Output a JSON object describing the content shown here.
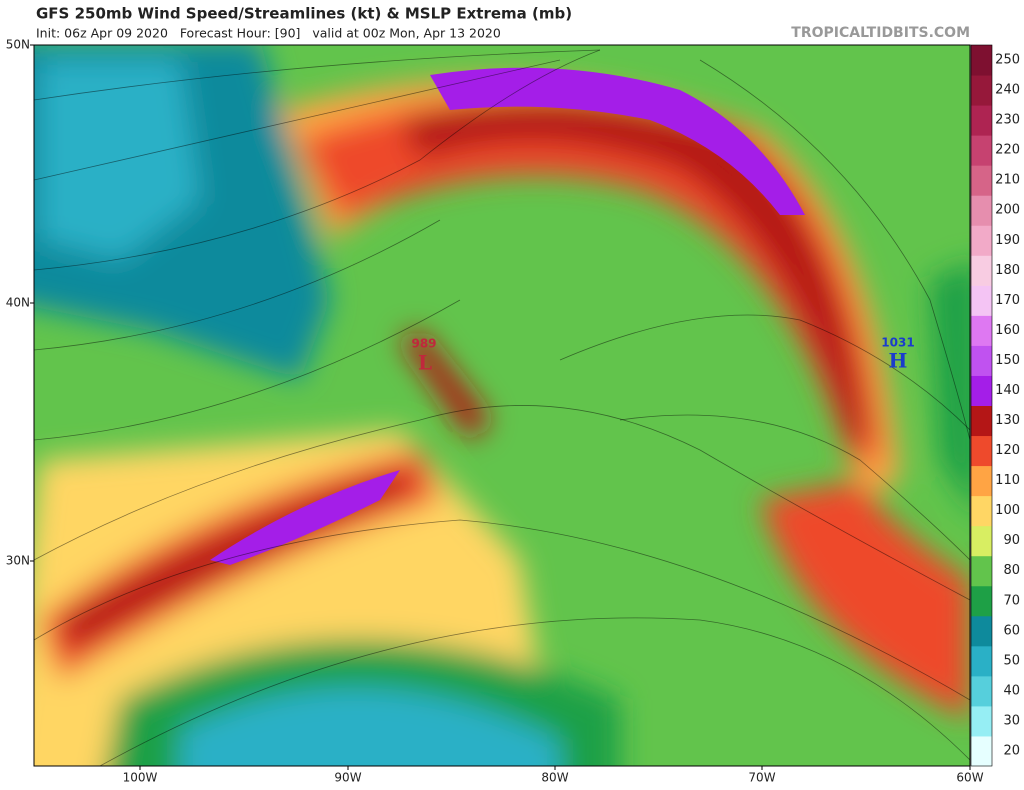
{
  "header": {
    "title": "GFS 250mb Wind Speed/Streamlines (kt) & MSLP Extrema (mb)",
    "subtitle": "Init: 06z Apr 09 2020   Forecast Hour: [90]   valid at 00z Mon, Apr 13 2020",
    "watermark": "TROPICALTIDBITS.COM"
  },
  "map": {
    "latitude_labels": [
      "50N",
      "40N",
      "30N"
    ],
    "longitude_labels": [
      "100W",
      "90W",
      "80W",
      "70W",
      "60W"
    ],
    "pressure_centers": [
      {
        "value": "989",
        "symbol": "L"
      },
      {
        "value": "1031",
        "symbol": "H"
      }
    ]
  },
  "colorbar": [
    {
      "label": "20",
      "color": "#e6ffff"
    },
    {
      "label": "30",
      "color": "#96eef4"
    },
    {
      "label": "40",
      "color": "#56cfdc"
    },
    {
      "label": "50",
      "color": "#2ab0c6"
    },
    {
      "label": "60",
      "color": "#0e8a9c"
    },
    {
      "label": "70",
      "color": "#1ea046"
    },
    {
      "label": "80",
      "color": "#62c44c"
    },
    {
      "label": "90",
      "color": "#d8ee62"
    },
    {
      "label": "100",
      "color": "#ffd664"
    },
    {
      "label": "110",
      "color": "#ffa444"
    },
    {
      "label": "120",
      "color": "#ee4a2c"
    },
    {
      "label": "130",
      "color": "#b41616"
    },
    {
      "label": "140",
      "color": "#a41ee8"
    },
    {
      "label": "150",
      "color": "#c052f0"
    },
    {
      "label": "160",
      "color": "#de78f2"
    },
    {
      "label": "170",
      "color": "#f4c4f4"
    },
    {
      "label": "180",
      "color": "#f8cce2"
    },
    {
      "label": "190",
      "color": "#f2aac8"
    },
    {
      "label": "200",
      "color": "#e68eae"
    },
    {
      "label": "210",
      "color": "#d66488"
    },
    {
      "label": "220",
      "color": "#c64270"
    },
    {
      "label": "230",
      "color": "#ae2452"
    },
    {
      "label": "240",
      "color": "#96183a"
    },
    {
      "label": "250",
      "color": "#7e1030"
    }
  ]
}
